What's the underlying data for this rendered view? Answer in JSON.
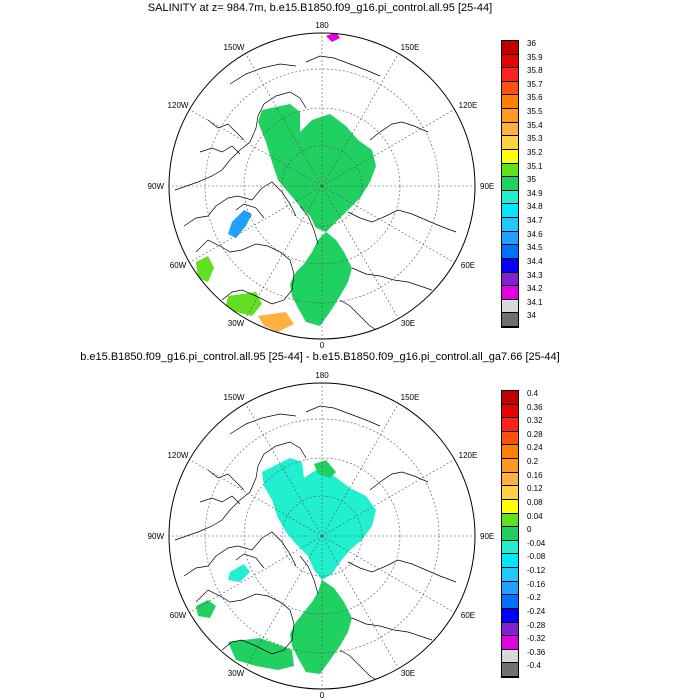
{
  "panels": [
    {
      "title": "SALINITY at z= 984.7m, b.e15.B1850.f09_g16.pi_control.all.95 [25-44]",
      "colorbar": {
        "labels": [
          "36",
          "35.9",
          "35.8",
          "35.7",
          "35.6",
          "35.5",
          "35.4",
          "35.3",
          "35.2",
          "35.1",
          "35",
          "34.9",
          "34.8",
          "34.7",
          "34.6",
          "34.5",
          "34.4",
          "34.3",
          "34.2",
          "34.1",
          "34"
        ],
        "colors": [
          "#c00000",
          "#ea0000",
          "#ff2020",
          "#ff5010",
          "#ff8000",
          "#ff9a20",
          "#ffb040",
          "#ffd040",
          "#ffff00",
          "#60e020",
          "#20d060",
          "#20f0d0",
          "#00e8ff",
          "#20c8ff",
          "#20a0ff",
          "#0070ff",
          "#0000ff",
          "#8020d0",
          "#e000e0",
          "#d8d8d8",
          "#707070"
        ]
      },
      "field_colors": {
        "arctic": "#20d060",
        "atlantic": "#20d060",
        "lab_sea": "#20a0ff",
        "ne_canada": "#60e020",
        "greenland_s": "#ffb040",
        "greenland_s_ring": "#60e020",
        "bering": "#e000e0"
      }
    },
    {
      "title": "b.e15.B1850.f09_g16.pi_control.all.95 [25-44] - b.e15.B1850.f09_g16.pi_control.all_ga7.66 [25-44]",
      "colorbar": {
        "labels": [
          "0.4",
          "0.36",
          "0.32",
          "0.28",
          "0.24",
          "0.2",
          "0.16",
          "0.12",
          "0.08",
          "0.04",
          "0",
          "-0.04",
          "-0.08",
          "-0.12",
          "-0.16",
          "-0.2",
          "-0.24",
          "-0.28",
          "-0.32",
          "-0.36",
          "-0.4"
        ],
        "colors": [
          "#c00000",
          "#ea0000",
          "#ff2020",
          "#ff5010",
          "#ff8000",
          "#ff9a20",
          "#ffb040",
          "#ffd040",
          "#ffff00",
          "#60e020",
          "#20d060",
          "#20f0d0",
          "#00e8ff",
          "#20c8ff",
          "#20a0ff",
          "#0070ff",
          "#0000ff",
          "#8020d0",
          "#e000e0",
          "#d8d8d8",
          "#707070"
        ]
      },
      "field_colors": {
        "arctic": "#20f0d0",
        "atlantic": "#20d060",
        "lab_sea": "#20f0d0",
        "ne_canada": "#20d060",
        "greenland_s": "#20d060",
        "siberia_strip": "#20d060"
      }
    }
  ],
  "lon_labels": {
    "top": "180",
    "bottom": "0",
    "left": "90W",
    "right": "90E",
    "nw1": "150W",
    "nw2": "120W",
    "sw1": "60W",
    "sw2": "30W",
    "ne1": "150E",
    "ne2": "120E",
    "se1": "60E",
    "se2": "30E"
  }
}
